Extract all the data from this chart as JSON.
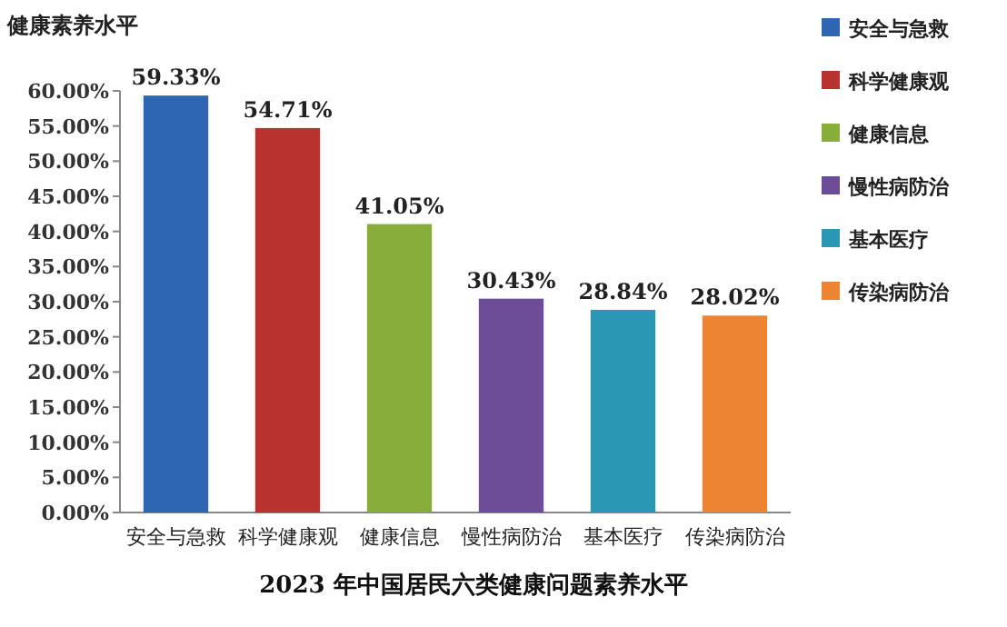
{
  "chart_data": {
    "type": "bar",
    "title": "2023 年中国居民六类健康问题素养水平",
    "ylabel": "健康素养水平",
    "categories": [
      "安全与急救",
      "科学健康观",
      "健康信息",
      "慢性病防治",
      "基本医疗",
      "传染病防治"
    ],
    "series": [
      {
        "name": "安全与急救",
        "color": "#2f66b3",
        "values": [
          59.33,
          null,
          null,
          null,
          null,
          null
        ],
        "value_labels": [
          "59.33%",
          null,
          null,
          null,
          null,
          null
        ]
      },
      {
        "name": "科学健康观",
        "color": "#b83230",
        "values": [
          null,
          54.71,
          null,
          null,
          null,
          null
        ],
        "value_labels": [
          null,
          "54.71%",
          null,
          null,
          null,
          null
        ]
      },
      {
        "name": "健康信息",
        "color": "#88ad3b",
        "values": [
          null,
          null,
          41.05,
          null,
          null,
          null
        ],
        "value_labels": [
          null,
          null,
          "41.05%",
          null,
          null,
          null
        ]
      },
      {
        "name": "慢性病防治",
        "color": "#6d4c98",
        "values": [
          null,
          null,
          null,
          30.43,
          null,
          null
        ],
        "value_labels": [
          null,
          null,
          null,
          "30.43%",
          null,
          null
        ]
      },
      {
        "name": "基本医疗",
        "color": "#2a97b5",
        "values": [
          null,
          null,
          null,
          null,
          28.84,
          null
        ],
        "value_labels": [
          null,
          null,
          null,
          null,
          "28.84%",
          null
        ]
      },
      {
        "name": "传染病防治",
        "color": "#ec8431",
        "values": [
          null,
          null,
          null,
          null,
          null,
          28.02
        ],
        "value_labels": [
          null,
          null,
          null,
          null,
          null,
          "28.02%"
        ]
      }
    ],
    "ylim": [
      0,
      60
    ],
    "yticks": [
      {
        "value": 0,
        "label": "0.00%"
      },
      {
        "value": 5,
        "label": "5.00%"
      },
      {
        "value": 10,
        "label": "10.00%"
      },
      {
        "value": 15,
        "label": "15.00%"
      },
      {
        "value": 20,
        "label": "20.00%"
      },
      {
        "value": 25,
        "label": "25.00%"
      },
      {
        "value": 30,
        "label": "30.00%"
      },
      {
        "value": 35,
        "label": "35.00%"
      },
      {
        "value": 40,
        "label": "40.00%"
      },
      {
        "value": 45,
        "label": "45.00%"
      },
      {
        "value": 50,
        "label": "50.00%"
      },
      {
        "value": 55,
        "label": "55.00%"
      },
      {
        "value": 60,
        "label": "60.00%"
      }
    ],
    "legend": "top right"
  }
}
